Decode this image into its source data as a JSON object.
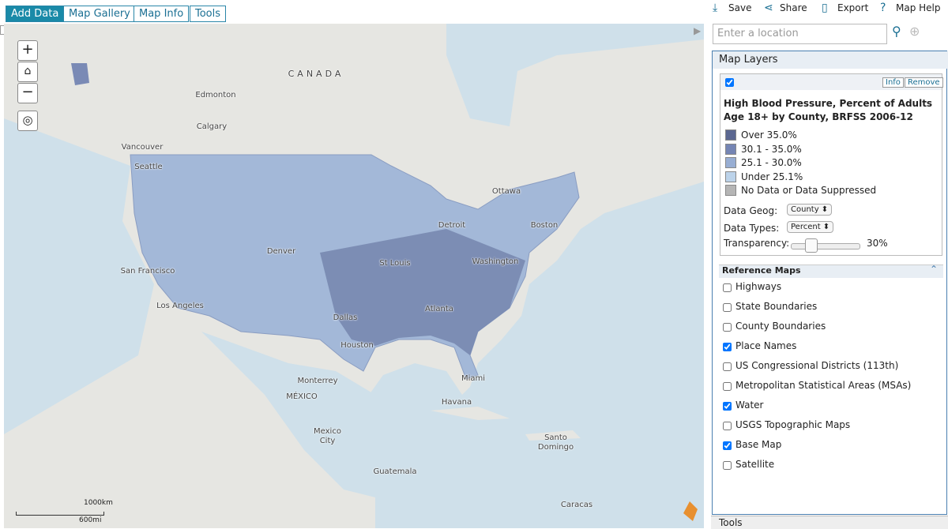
{
  "tabs": [
    "Add Data",
    "Map Gallery",
    "Map Info",
    "Tools"
  ],
  "toolbar": [
    "Save",
    "Share",
    "Export",
    "Map Help"
  ],
  "search": {
    "placeholder": "Enter a location"
  },
  "map": {
    "place_names": [
      "CANADA",
      "Edmonton",
      "Calgary",
      "Vancouver",
      "Seattle",
      "Ottawa",
      "Boston",
      "Detroit",
      "Denver",
      "San Francisco",
      "St Louis",
      "Washington",
      "Los Angeles",
      "Dallas",
      "Atlanta",
      "Houston",
      "Monterrey",
      "MÉXICO",
      "Miami",
      "Havana",
      "Mexico City",
      "Santo Domingo",
      "Guatemala",
      "Caracas"
    ],
    "scale": [
      "1000km",
      "600mi"
    ]
  },
  "panel": {
    "title": "Map Layers",
    "layer": {
      "buttons": [
        "Info",
        "Remove"
      ],
      "title": "High Blood Pressure, Percent of Adults Age 18+ by County, BRFSS 2006-12",
      "legend": [
        {
          "label": "Over 35.0%",
          "color": "#5b6791"
        },
        {
          "label": "30.1 - 35.0%",
          "color": "#7585b4"
        },
        {
          "label": "25.1 - 30.0%",
          "color": "#98aed3"
        },
        {
          "label": "Under 25.1%",
          "color": "#bcd3ea"
        },
        {
          "label": "No Data or Data Suppressed",
          "color": "#b5b5b5"
        }
      ],
      "controls": [
        {
          "label": "Data Geog:",
          "value": "County"
        },
        {
          "label": "Data Types:",
          "value": "Percent"
        }
      ],
      "transparency": {
        "label": "Transparency:",
        "value": "30%"
      }
    },
    "reference": {
      "title": "Reference Maps",
      "items": [
        {
          "label": "Highways",
          "checked": false
        },
        {
          "label": "State Boundaries",
          "checked": false
        },
        {
          "label": "County Boundaries",
          "checked": false
        },
        {
          "label": "Place Names",
          "checked": true
        },
        {
          "label": "US Congressional Districts (113th)",
          "checked": false
        },
        {
          "label": "Metropolitan Statistical Areas (MSAs)",
          "checked": false
        },
        {
          "label": "Water",
          "checked": true
        },
        {
          "label": "USGS Topographic Maps",
          "checked": false
        },
        {
          "label": "Base Map",
          "checked": true
        },
        {
          "label": "Satellite",
          "checked": false
        }
      ]
    },
    "tools": "Tools"
  }
}
